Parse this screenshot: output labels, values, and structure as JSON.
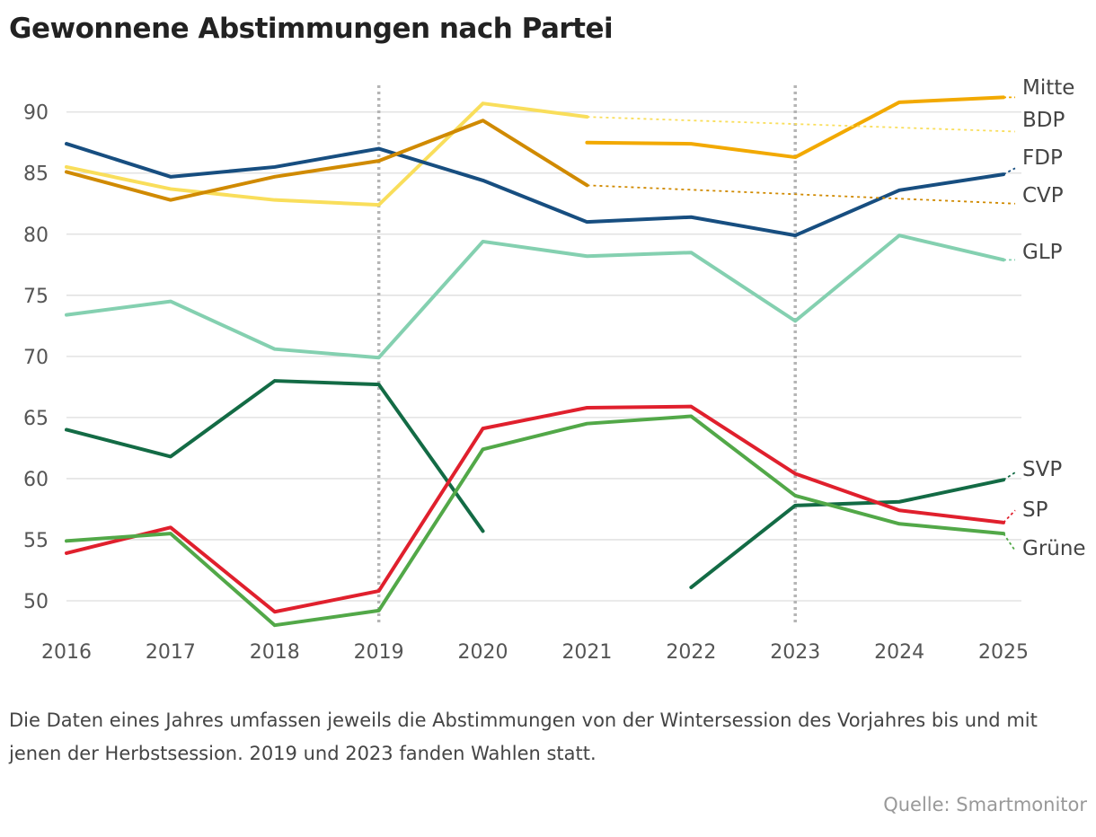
{
  "chart_data": {
    "type": "line",
    "title": "Gewonnene Abstimmungen nach Partei",
    "categories": [
      "2016",
      "2017",
      "2018",
      "2019",
      "2020",
      "2021",
      "2022",
      "2023",
      "2024",
      "2025"
    ],
    "x": [
      2016,
      2017,
      2018,
      2019,
      2020,
      2021,
      2022,
      2023,
      2024,
      2025
    ],
    "ylim": [
      47.5,
      92
    ],
    "yticks": [
      50,
      55,
      60,
      65,
      70,
      75,
      80,
      85,
      90
    ],
    "xlabel": "",
    "ylabel": "",
    "grid": true,
    "election_years": [
      2019,
      2023
    ],
    "series": [
      {
        "name": "Mitte",
        "color": "#F2A900",
        "values": [
          null,
          null,
          null,
          null,
          null,
          87.5,
          87.4,
          86.3,
          90.8,
          91.2
        ],
        "dotted_to": 91.2
      },
      {
        "name": "BDP",
        "color": "#F9DE5B",
        "values": [
          85.5,
          83.7,
          82.8,
          82.4,
          90.7,
          89.6,
          null,
          null,
          null,
          null
        ],
        "dotted_to": 88.4
      },
      {
        "name": "FDP",
        "color": "#174E80",
        "values": [
          87.4,
          84.7,
          85.5,
          87.0,
          84.4,
          81.0,
          81.4,
          79.9,
          83.6,
          84.9
        ],
        "dotted_to": 85.4
      },
      {
        "name": "CVP",
        "color": "#D08A00",
        "values": [
          85.1,
          82.8,
          84.7,
          86.0,
          89.3,
          84.0,
          null,
          null,
          null,
          null
        ],
        "dotted_to": 82.5
      },
      {
        "name": "GLP",
        "color": "#84D0B0",
        "values": [
          73.4,
          74.5,
          70.6,
          69.9,
          79.4,
          78.2,
          78.5,
          72.9,
          79.9,
          77.9
        ],
        "dotted_to": 77.9
      },
      {
        "name": "SVP",
        "color": "#136B45",
        "values": [
          64.0,
          61.8,
          68.0,
          67.7,
          55.7,
          null,
          51.1,
          57.8,
          58.1,
          59.9
        ],
        "dotted_to": 60.5
      },
      {
        "name": "SP",
        "color": "#E0202D",
        "values": [
          53.9,
          56.0,
          49.1,
          50.8,
          64.1,
          65.8,
          65.9,
          60.4,
          57.4,
          56.4
        ],
        "dotted_to": 57.4
      },
      {
        "name": "Grüne",
        "color": "#52A848",
        "values": [
          54.9,
          55.5,
          48.0,
          49.2,
          62.4,
          64.5,
          65.1,
          58.6,
          56.3,
          55.5
        ],
        "dotted_to": 54.1
      }
    ]
  },
  "note": "Die Daten eines Jahres umfassen jeweils die Abstimmungen von der Wintersession des Vorjahres bis und mit jenen der Herbstsession. 2019 und 2023 fanden Wahlen statt.",
  "source": "Quelle: Smartmonitor"
}
